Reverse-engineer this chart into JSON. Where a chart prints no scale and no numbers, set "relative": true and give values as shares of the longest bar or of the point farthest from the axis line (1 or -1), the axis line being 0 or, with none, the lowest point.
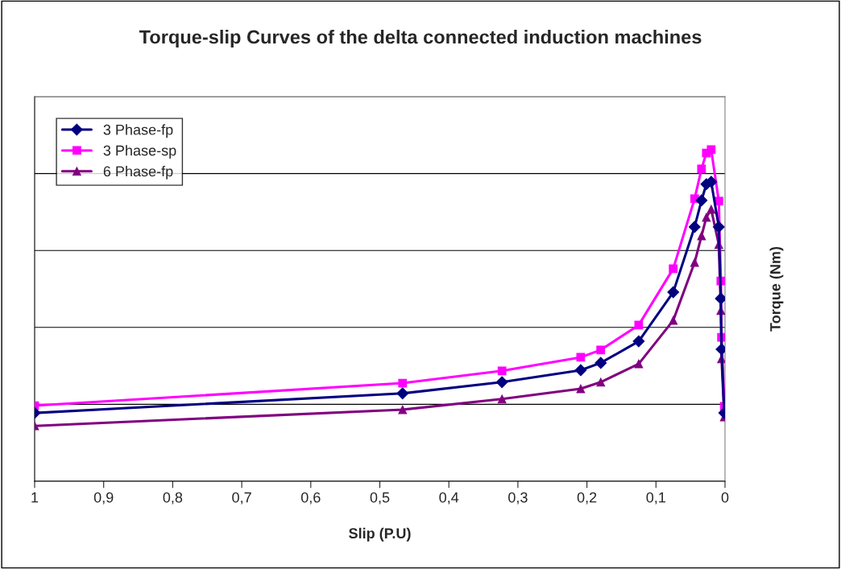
{
  "chart_data": {
    "type": "line",
    "title": "Torque-slip Curves of the delta connected induction machines",
    "xlabel": "Slip (P.U)",
    "ylabel": "Torque (Nm)",
    "relative": true,
    "xlim": [
      1,
      0
    ],
    "xticks": [
      {
        "value": 1,
        "label": "1"
      },
      {
        "value": 0.9,
        "label": "0,9"
      },
      {
        "value": 0.8,
        "label": "0,8"
      },
      {
        "value": 0.7,
        "label": "0,7"
      },
      {
        "value": 0.6,
        "label": "0,6"
      },
      {
        "value": 0.5,
        "label": "0,5"
      },
      {
        "value": 0.4,
        "label": "0,4"
      },
      {
        "value": 0.3,
        "label": "0,3"
      },
      {
        "value": 0.2,
        "label": "0,2"
      },
      {
        "value": 0.1,
        "label": "0,1"
      },
      {
        "value": 0,
        "label": "0"
      }
    ],
    "x": [
      1,
      0.467,
      0.323,
      0.209,
      0.18,
      0.125,
      0.075,
      0.044,
      0.034,
      0.027,
      0.02,
      0.009,
      0.006,
      0.005,
      0.001
    ],
    "grid": "y",
    "legend": "top left",
    "tick_labels": "x",
    "line_style": "solid",
    "series": [
      {
        "name": "3 Phase-fp",
        "color": "#000080",
        "marker": "diamond",
        "values": [
          0.206,
          0.265,
          0.299,
          0.335,
          0.357,
          0.422,
          0.57,
          0.767,
          0.847,
          0.896,
          0.903,
          0.767,
          0.551,
          0.398,
          0.206
        ]
      },
      {
        "name": "3 Phase-sp",
        "color": "#ff00ff",
        "marker": "square",
        "values": [
          0.228,
          0.296,
          0.333,
          0.374,
          0.396,
          0.471,
          0.641,
          0.852,
          0.942,
          0.99,
          1.0,
          0.845,
          0.604,
          0.434,
          0.226
        ]
      },
      {
        "name": "6 Phase-fp",
        "color": "#800080",
        "marker": "triangle",
        "values": [
          0.167,
          0.216,
          0.248,
          0.279,
          0.299,
          0.354,
          0.485,
          0.66,
          0.74,
          0.796,
          0.82,
          0.714,
          0.515,
          0.369,
          0.194
        ]
      }
    ]
  }
}
